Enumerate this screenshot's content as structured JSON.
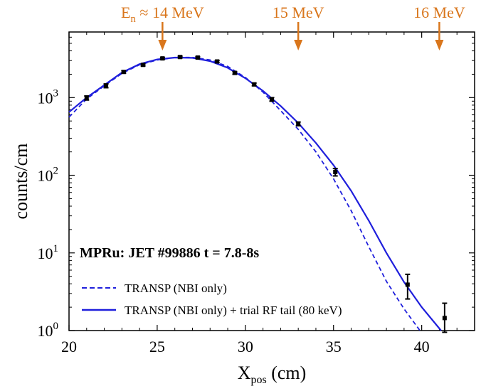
{
  "chart_data": {
    "type": "scatter",
    "log_y": true,
    "xlim": [
      20,
      43
    ],
    "ylim": [
      1,
      7000
    ],
    "xticks": [
      20,
      25,
      30,
      35,
      40
    ],
    "yticks": [
      {
        "value": 1,
        "base": "10",
        "exp": "0"
      },
      {
        "value": 10,
        "base": "10",
        "exp": "1"
      },
      {
        "value": 100,
        "base": "10",
        "exp": "2"
      },
      {
        "value": 1000,
        "base": "10",
        "exp": "3"
      }
    ],
    "xlabel": {
      "main": "X",
      "sub": "pos",
      "rest": " (cm)"
    },
    "ylabel": "counts/cm",
    "annotation": "MPRu: JET #99886 t = 7.8-8s",
    "energy_markers": [
      {
        "x": 25.3,
        "main": "E",
        "sub": "n",
        "rest": " ≈ 14 MeV"
      },
      {
        "x": 33.0,
        "main": "15 MeV",
        "sub": "",
        "rest": ""
      },
      {
        "x": 41.0,
        "main": "16 MeV",
        "sub": "",
        "rest": ""
      }
    ],
    "series": [
      {
        "name": "TRANSP (NBI only)",
        "style": "dashed",
        "color": "#1f1fdc",
        "x": [
          20,
          21,
          22,
          23,
          24,
          25,
          26,
          27,
          28,
          29,
          30,
          31,
          32,
          33,
          34,
          35,
          36,
          37,
          38,
          39,
          39.9
        ],
        "y": [
          560,
          960,
          1420,
          2050,
          2650,
          3050,
          3280,
          3300,
          3050,
          2520,
          1820,
          1180,
          680,
          390,
          200,
          90,
          35,
          12,
          4.3,
          1.9,
          1.0
        ]
      },
      {
        "name": "TRANSP (NBI only) + trial RF tail (80 keV)",
        "style": "solid",
        "color": "#1f1fdc",
        "x": [
          20,
          21,
          22,
          23,
          24,
          25,
          26,
          27,
          28,
          29,
          30,
          31,
          32,
          33,
          34,
          35,
          36,
          37,
          38,
          39,
          40,
          41.1
        ],
        "y": [
          650,
          1000,
          1450,
          2100,
          2700,
          3100,
          3280,
          3250,
          2950,
          2420,
          1780,
          1220,
          780,
          470,
          260,
          135,
          63,
          26,
          10,
          4.2,
          2.0,
          0.95
        ]
      }
    ],
    "data_points": {
      "color": "#000000",
      "x": [
        21.0,
        22.1,
        23.1,
        24.2,
        25.3,
        26.3,
        27.3,
        28.4,
        29.4,
        30.5,
        31.5,
        33.0,
        35.1,
        39.2,
        41.3
      ],
      "y": [
        990,
        1420,
        2140,
        2640,
        3200,
        3330,
        3280,
        2920,
        2080,
        1480,
        950,
        460,
        110,
        3.9,
        1.45
      ],
      "err_low": [
        930,
        1340,
        2060,
        2560,
        3110,
        3240,
        3190,
        2830,
        2000,
        1420,
        900,
        435,
        98,
        2.55,
        0.95
      ],
      "err_high": [
        1050,
        1500,
        2220,
        2720,
        3290,
        3420,
        3370,
        3010,
        2160,
        1540,
        1000,
        485,
        122,
        5.3,
        2.25
      ]
    }
  }
}
